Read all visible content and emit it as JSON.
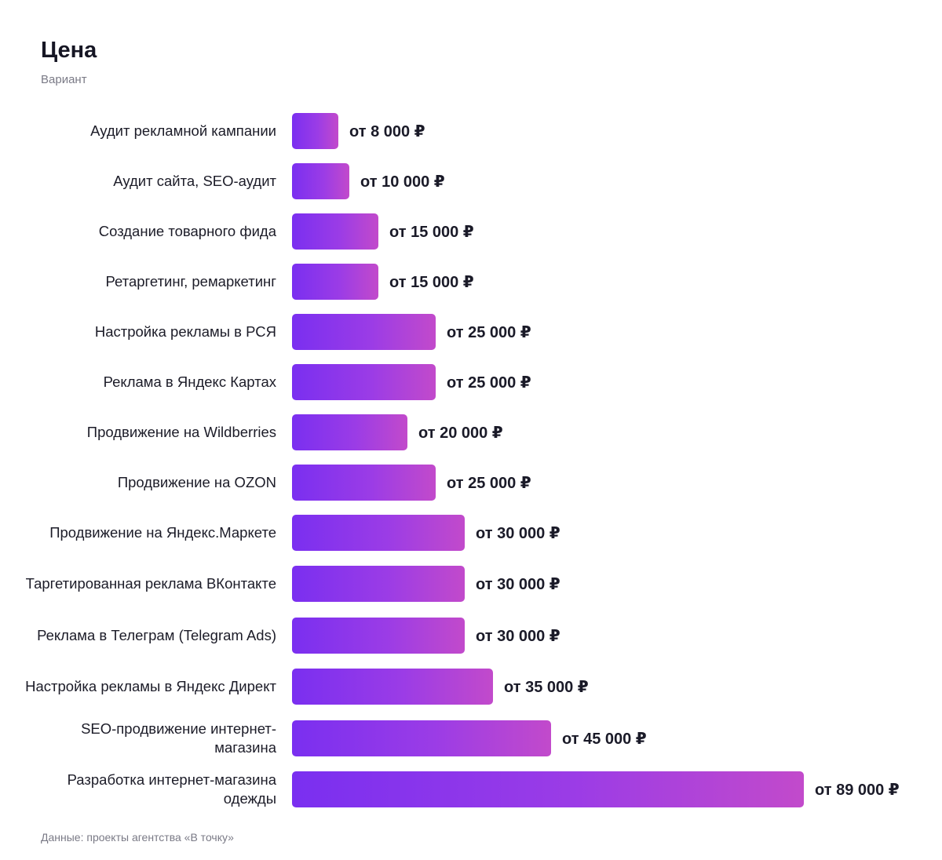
{
  "chart_data": {
    "type": "bar",
    "orientation": "horizontal",
    "title": "Цена",
    "subtitle": "Вариант",
    "source": "Данные: проекты агентства «В точку»",
    "value_prefix": "от ",
    "value_suffix": " ₽",
    "categories": [
      "Аудит рекламной кампании",
      "Аудит сайта, SEO-аудит",
      "Создание товарного фида",
      "Ретаргетинг, ремаркетинг",
      "Настройка рекламы в РСЯ",
      "Реклама в Яндекс Картах",
      "Продвижение на Wildberries",
      "Продвижение на OZON",
      "Продвижение на Яндекс.Маркете",
      "Таргетированная реклама ВКонтакте",
      "Реклама в Телеграм (Telegram Ads)",
      "Настройка рекламы в Яндекс Директ",
      "SEO-продвижение интернет-магазина",
      "Разработка интернет-магазина одежды"
    ],
    "values": [
      8000,
      10000,
      15000,
      15000,
      25000,
      25000,
      20000,
      25000,
      30000,
      30000,
      30000,
      35000,
      45000,
      89000
    ],
    "value_labels": [
      "от 8 000 ₽",
      "от 10 000 ₽",
      "от 15 000 ₽",
      "от 15 000 ₽",
      "от 25 000 ₽",
      "от 25 000 ₽",
      "от 20 000 ₽",
      "от 25 000 ₽",
      "от 30 000 ₽",
      "от 30 000 ₽",
      "от 30 000 ₽",
      "от 35 000 ₽",
      "от 45 000 ₽",
      "от 89 000 ₽"
    ],
    "colors": {
      "bar_gradient_start": "#7a2ff0",
      "bar_gradient_end": "#c24acb"
    },
    "grid": false,
    "legend": "none"
  }
}
